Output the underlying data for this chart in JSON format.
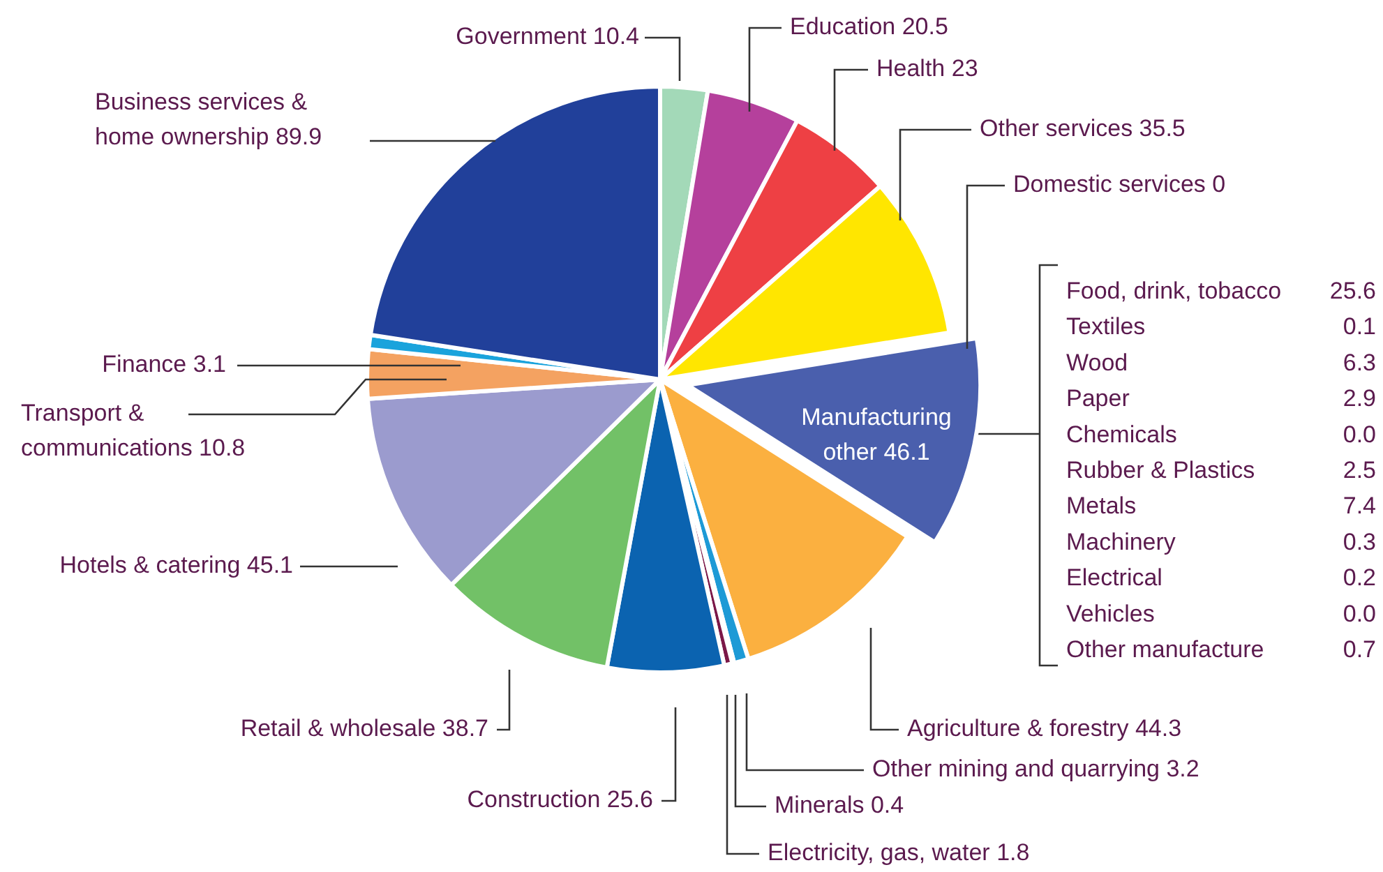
{
  "chart_data": {
    "type": "pie",
    "value_labels": [
      "10.4",
      "20.5",
      "23",
      "35.5",
      "0",
      "46.1",
      "44.3",
      "3.2",
      "0.4",
      "1.8",
      "25.6",
      "38.7",
      "45.1",
      "10.8",
      "3.1",
      "89.9"
    ],
    "categories": [
      "Government",
      "Education",
      "Health",
      "Other services",
      "Domestic services",
      "Manufacturing other",
      "Agriculture & forestry",
      "Other mining and quarrying",
      "Minerals",
      "Electricity, gas, water",
      "Construction",
      "Retail & wholesale",
      "Hotels & catering",
      "Transport & communications",
      "Finance",
      "Business services & home ownership"
    ],
    "values": [
      10.4,
      20.5,
      23,
      35.5,
      0,
      46.1,
      44.3,
      3.2,
      0.4,
      1.8,
      25.6,
      38.7,
      45.1,
      10.8,
      3.1,
      89.9
    ],
    "colors": [
      "#a3d9b8",
      "#b5409c",
      "#ee4044",
      "#ffe600",
      "#f2c94c",
      "#4a5fad",
      "#fbb040",
      "#1d9ad6",
      "#ece2a0",
      "#7b1848",
      "#0b63b0",
      "#72c167",
      "#9b9bce",
      "#f4a261",
      "#1aa3dc",
      "#21409a"
    ],
    "annotations": [
      "Food, drink, tobacco 25.6",
      "Textiles 0.1",
      "Wood 6.3",
      "Paper 2.9",
      "Chemicals 0.0",
      "Rubber & Plastics 2.5",
      "Metals 7.4",
      "Machinery 0.3",
      "Electrical 0.2",
      "Vehicles 0.0",
      "Other manufacture 0.7"
    ]
  }
}
